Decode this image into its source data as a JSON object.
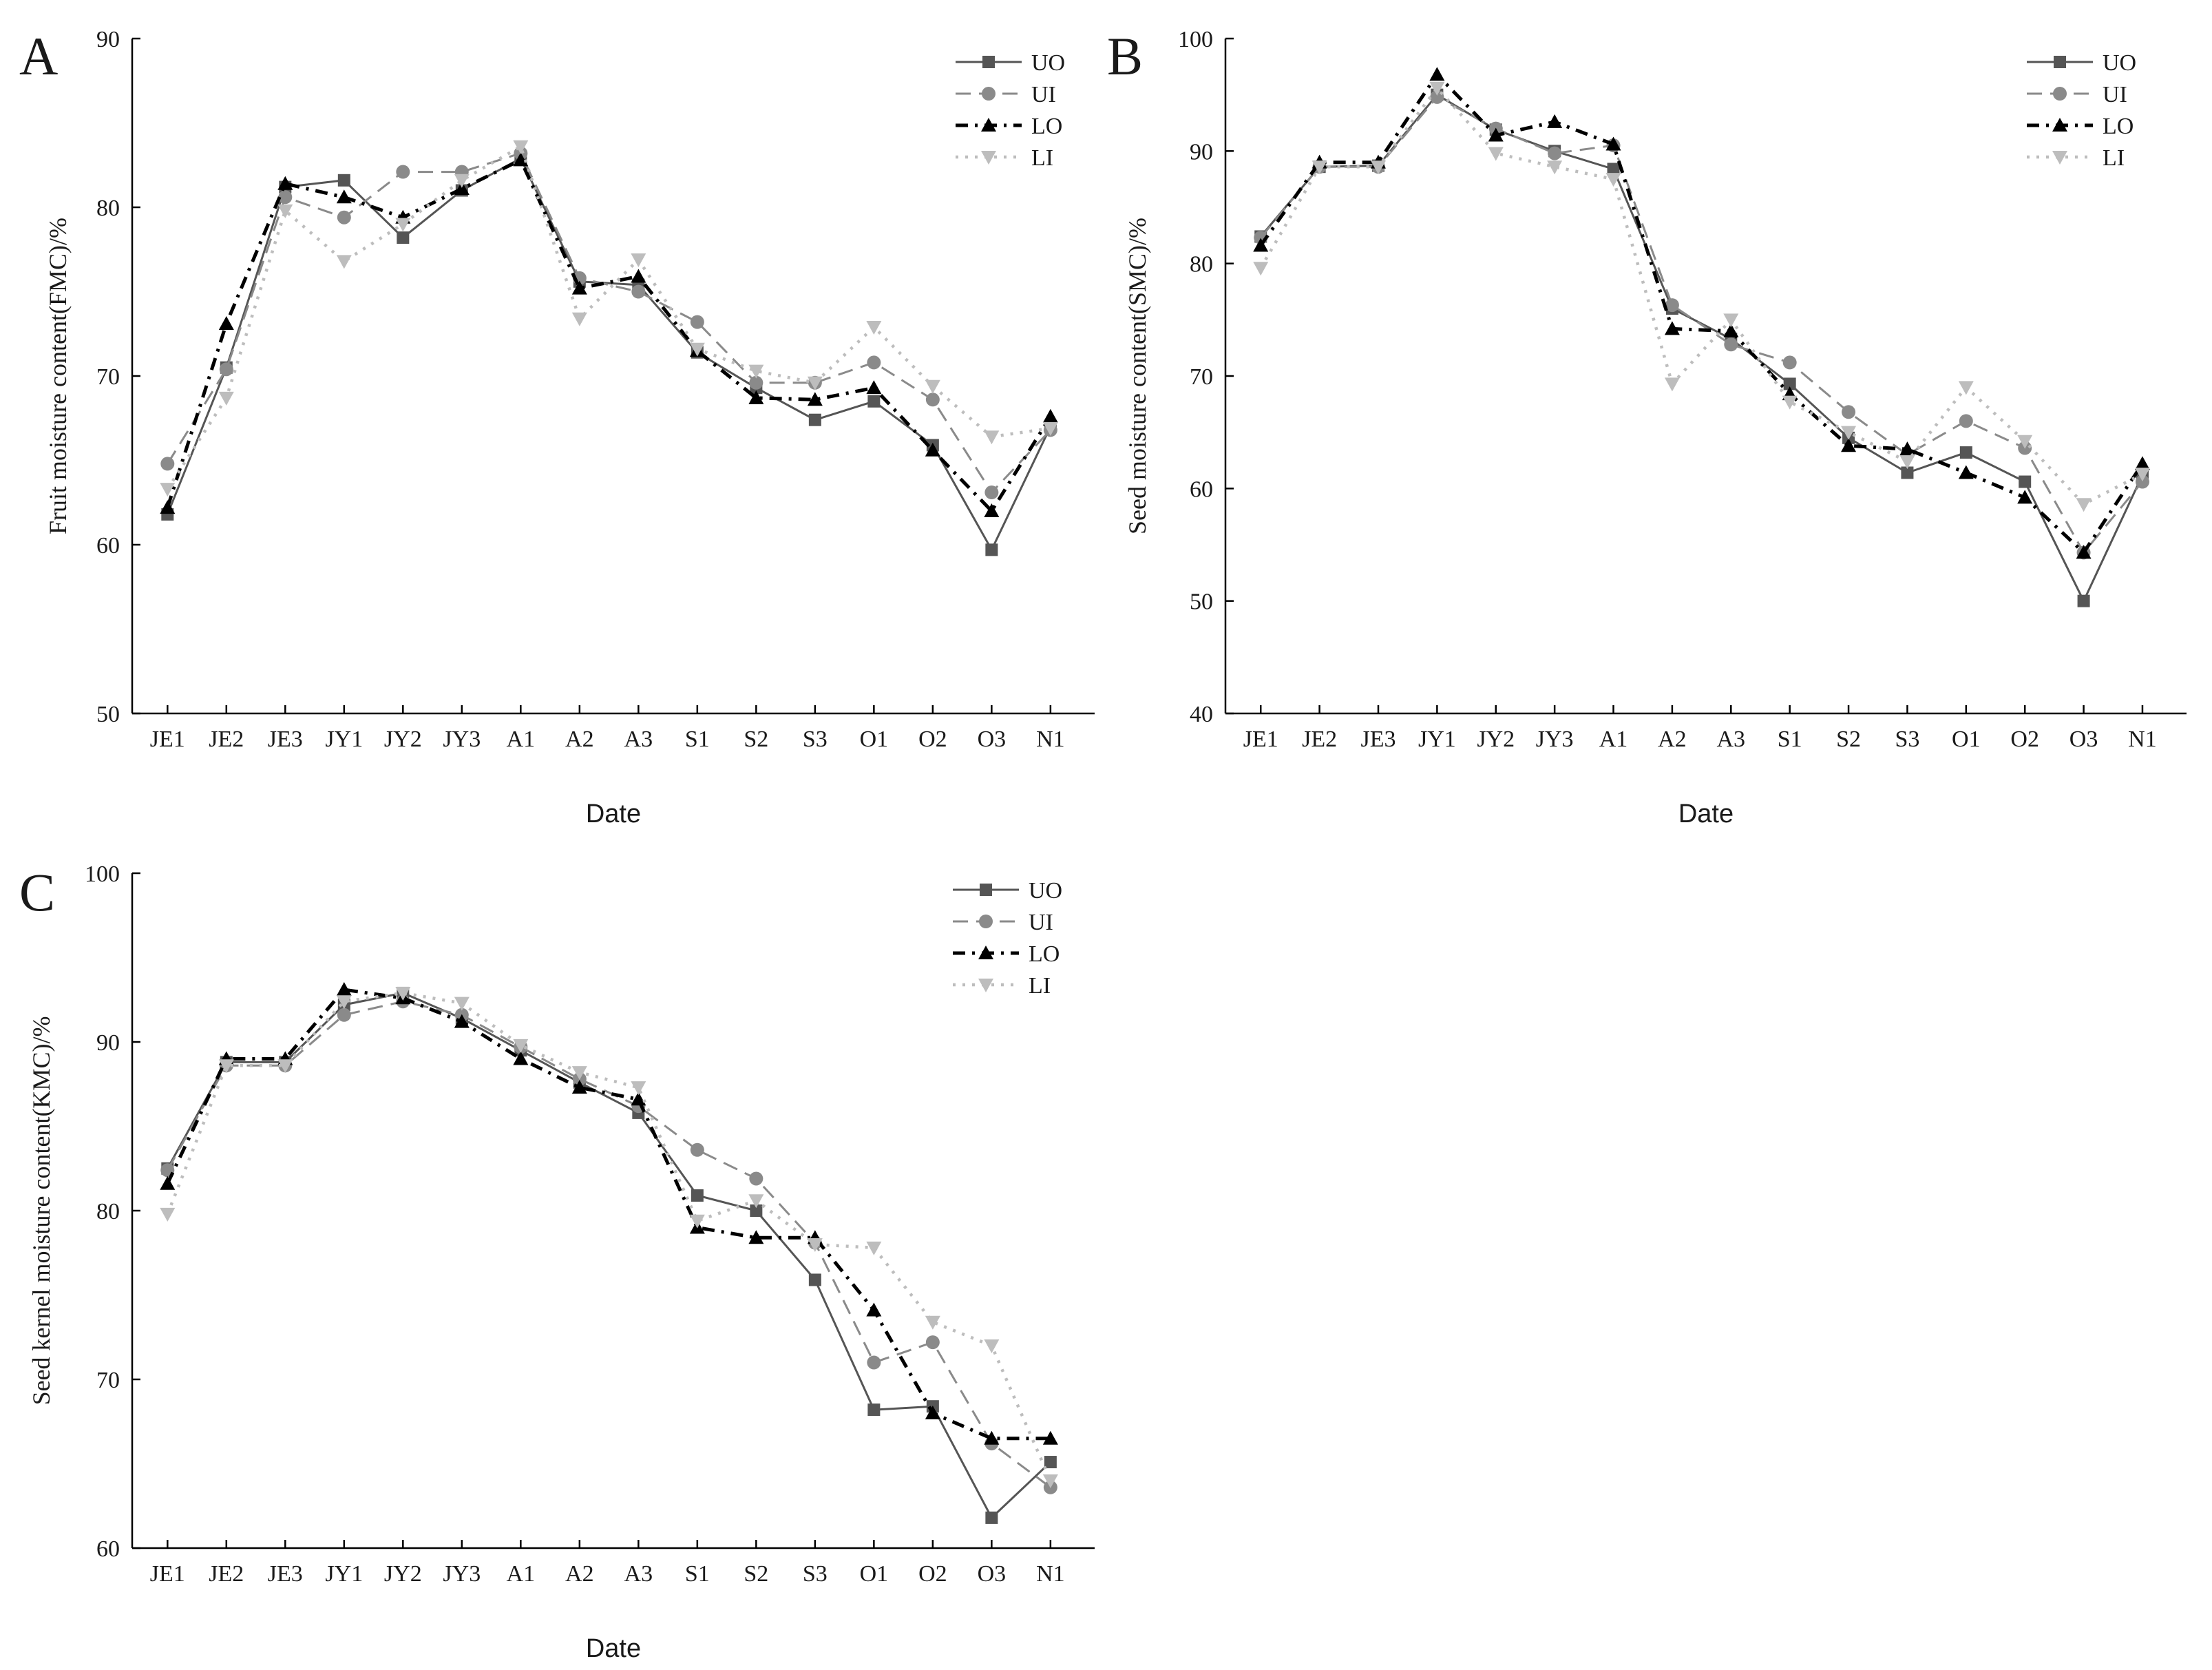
{
  "figure": {
    "colors": {
      "UO": "#555555",
      "UI": "#8a8a8a",
      "LO": "#000000",
      "LI": "#bdbdbd",
      "axis": "#000000"
    },
    "legend_labels": [
      "UO",
      "UI",
      "LO",
      "LI"
    ]
  },
  "chart_data": [
    {
      "panel": "A",
      "type": "line",
      "title": "",
      "xlabel": "Date",
      "ylabel": "Fruit moisture content(FMC)/%",
      "ylim": [
        50,
        90
      ],
      "yticks": [
        "50",
        "60",
        "70",
        "80",
        "90"
      ],
      "categories": [
        "JE1",
        "JE2",
        "JE3",
        "JY1",
        "JY2",
        "JY3",
        "A1",
        "A2",
        "A3",
        "S1",
        "S2",
        "S3",
        "O1",
        "O2",
        "O3",
        "N1"
      ],
      "legend_position": "top-right",
      "series": [
        {
          "name": "UO",
          "values": [
            61.8,
            70.5,
            81.2,
            81.6,
            78.2,
            81.0,
            82.9,
            75.6,
            75.4,
            71.4,
            69.3,
            67.4,
            68.5,
            65.9,
            59.7,
            67.0
          ]
        },
        {
          "name": "UI",
          "values": [
            64.8,
            70.4,
            80.6,
            79.4,
            82.1,
            82.1,
            83.2,
            75.8,
            75.0,
            73.2,
            69.6,
            69.6,
            70.8,
            68.6,
            63.1,
            66.8
          ]
        },
        {
          "name": "LO",
          "values": [
            62.2,
            73.1,
            81.4,
            80.6,
            79.4,
            81.1,
            82.8,
            75.2,
            75.9,
            71.5,
            68.7,
            68.6,
            69.3,
            65.6,
            62.0,
            67.6
          ]
        },
        {
          "name": "LI",
          "values": [
            63.3,
            68.7,
            79.8,
            76.8,
            79.0,
            81.6,
            83.6,
            73.4,
            76.9,
            71.6,
            70.3,
            69.6,
            72.9,
            69.4,
            66.4,
            66.9
          ]
        }
      ]
    },
    {
      "panel": "B",
      "type": "line",
      "title": "",
      "xlabel": "Date",
      "ylabel": "Seed moisture content(SMC)/%",
      "ylim": [
        40,
        100
      ],
      "yticks": [
        "40",
        "50",
        "60",
        "70",
        "80",
        "90",
        "100"
      ],
      "categories": [
        "JE1",
        "JE2",
        "JE3",
        "JY1",
        "JY2",
        "JY3",
        "A1",
        "A2",
        "A3",
        "S1",
        "S2",
        "S3",
        "O1",
        "O2",
        "O3",
        "N1"
      ],
      "legend_position": "top-right",
      "series": [
        {
          "name": "UO",
          "values": [
            82.4,
            88.6,
            88.7,
            95.0,
            91.9,
            90.0,
            88.4,
            76.0,
            73.3,
            69.3,
            64.5,
            61.4,
            63.2,
            60.6,
            50.0,
            61.2
          ]
        },
        {
          "name": "UI",
          "values": [
            82.3,
            88.6,
            88.6,
            94.8,
            92.0,
            89.8,
            90.5,
            76.3,
            72.8,
            71.2,
            66.8,
            63.0,
            66.0,
            63.6,
            54.3,
            60.6
          ]
        },
        {
          "name": "LO",
          "values": [
            81.6,
            89.0,
            89.0,
            96.8,
            91.4,
            92.6,
            90.6,
            74.2,
            74.0,
            68.4,
            63.8,
            63.5,
            61.4,
            59.2,
            54.3,
            62.2
          ]
        },
        {
          "name": "LI",
          "values": [
            79.6,
            88.6,
            88.6,
            95.6,
            89.8,
            88.6,
            87.5,
            69.3,
            75.0,
            67.7,
            65.0,
            62.4,
            69.0,
            64.2,
            58.6,
            61.3
          ]
        }
      ]
    },
    {
      "panel": "C",
      "type": "line",
      "title": "",
      "xlabel": "Date",
      "ylabel": "Seed kernel moisture content(KMC)/%",
      "ylim": [
        60,
        100
      ],
      "yticks": [
        "60",
        "70",
        "80",
        "90",
        "100"
      ],
      "categories": [
        "JE1",
        "JE2",
        "JE3",
        "JY1",
        "JY2",
        "JY3",
        "A1",
        "A2",
        "A3",
        "S1",
        "S2",
        "S3",
        "O1",
        "O2",
        "O3",
        "N1"
      ],
      "legend_position": "top-right",
      "series": [
        {
          "name": "UO",
          "values": [
            82.5,
            88.8,
            88.8,
            92.2,
            92.9,
            91.4,
            89.5,
            87.6,
            85.8,
            80.9,
            80.0,
            75.9,
            68.2,
            68.4,
            61.8,
            65.1
          ]
        },
        {
          "name": "UI",
          "values": [
            82.4,
            88.6,
            88.6,
            91.6,
            92.4,
            91.6,
            89.7,
            87.8,
            86.2,
            83.6,
            81.9,
            78.1,
            71.0,
            72.2,
            66.2,
            63.6
          ]
        },
        {
          "name": "LO",
          "values": [
            81.6,
            89.0,
            89.0,
            93.1,
            92.6,
            91.2,
            89.0,
            87.3,
            86.6,
            79.0,
            78.4,
            78.4,
            74.1,
            68.0,
            66.5,
            66.5
          ]
        },
        {
          "name": "LI",
          "values": [
            79.8,
            88.6,
            88.6,
            92.4,
            92.9,
            92.3,
            89.8,
            88.2,
            87.3,
            79.4,
            80.6,
            78.0,
            77.8,
            73.4,
            72.0,
            64.0
          ]
        }
      ]
    }
  ]
}
